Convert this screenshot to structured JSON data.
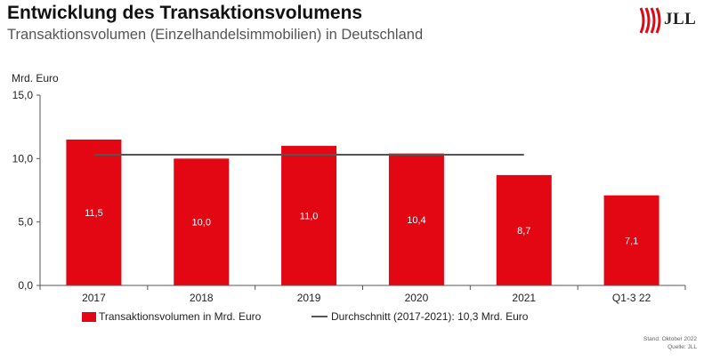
{
  "header": {
    "title": "Entwicklung des Transaktionsvolumens",
    "subtitle": "Transaktionsvolumen (Einzelhandelsimmobilien) in Deutschland",
    "logo_text": "JLL"
  },
  "footer": {
    "stand": "Stand: Oktober 2022",
    "quelle": "Quelle: JLL"
  },
  "colors": {
    "bar": "#e30613",
    "average_line": "#555555"
  },
  "chart_data": {
    "type": "bar",
    "title": "Entwicklung des Transaktionsvolumens",
    "subtitle": "Transaktionsvolumen (Einzelhandelsimmobilien) in Deutschland",
    "ylabel": "Mrd. Euro",
    "xlabel": "",
    "ylim": [
      0,
      15
    ],
    "yticks": [
      "0,0",
      "5,0",
      "10,0",
      "15,0"
    ],
    "categories": [
      "2017",
      "2018",
      "2019",
      "2020",
      "2021",
      "Q1-3 22"
    ],
    "series": [
      {
        "name": "Transaktionsvolumen in Mrd. Euro",
        "values": [
          11.5,
          10.0,
          11.0,
          10.4,
          8.7,
          7.1
        ],
        "labels": [
          "11,5",
          "10,0",
          "11,0",
          "10,4",
          "8,7",
          "7,1"
        ]
      }
    ],
    "average": {
      "name": "Durchschnitt (2017-2021): 10,3 Mrd. Euro",
      "value": 10.3,
      "span": [
        "2017",
        "2021"
      ]
    },
    "legend": "bottom",
    "grid": false
  }
}
